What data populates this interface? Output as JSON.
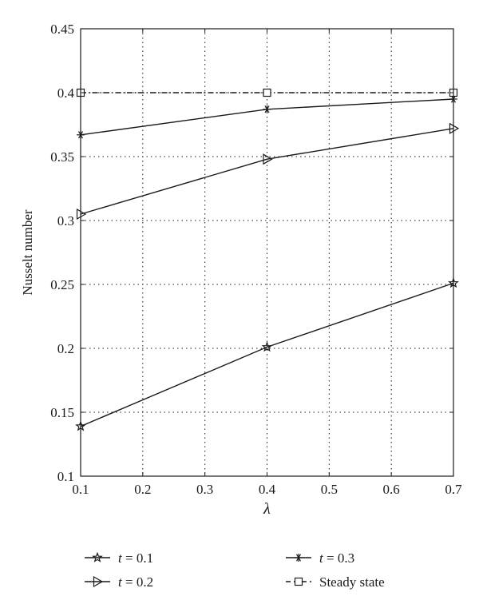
{
  "chart_data": {
    "type": "line",
    "xlabel": "λ",
    "ylabel": "Nusselt number",
    "xlim": [
      0.1,
      0.7
    ],
    "ylim": [
      0.1,
      0.45
    ],
    "xticks": [
      0.1,
      0.2,
      0.3,
      0.4,
      0.5,
      0.6,
      0.7
    ],
    "xtick_labels": [
      "0.1",
      "0.2",
      "0.3",
      "0.4",
      "0.5",
      "0.6",
      "0.7"
    ],
    "yticks": [
      0.1,
      0.15,
      0.2,
      0.25,
      0.3,
      0.35,
      0.4,
      0.45
    ],
    "ytick_labels": [
      "0.1",
      "0.15",
      "0.2",
      "0.25",
      "0.3",
      "0.35",
      "0.4",
      "0.45"
    ],
    "grid": true,
    "legend_position": "bottom",
    "series": [
      {
        "name": "t = 0.1",
        "legend_var": "t",
        "legend_rest": " = 0.1",
        "marker": "star",
        "dash": "solid",
        "x": [
          0.1,
          0.4,
          0.7
        ],
        "y": [
          0.139,
          0.201,
          0.251
        ]
      },
      {
        "name": "t = 0.2",
        "legend_var": "t",
        "legend_rest": " = 0.2",
        "marker": "triangle-right",
        "dash": "solid",
        "x": [
          0.1,
          0.4,
          0.7
        ],
        "y": [
          0.305,
          0.348,
          0.372
        ]
      },
      {
        "name": "t = 0.3",
        "legend_var": "t",
        "legend_rest": " = 0.3",
        "marker": "asterisk",
        "dash": "solid",
        "x": [
          0.1,
          0.4,
          0.7
        ],
        "y": [
          0.367,
          0.387,
          0.395
        ]
      },
      {
        "name": "Steady state",
        "legend_var": "",
        "legend_rest": "Steady state",
        "marker": "square",
        "dash": "dashdot",
        "x": [
          0.1,
          0.4,
          0.7
        ],
        "y": [
          0.4,
          0.4,
          0.4
        ]
      }
    ]
  }
}
